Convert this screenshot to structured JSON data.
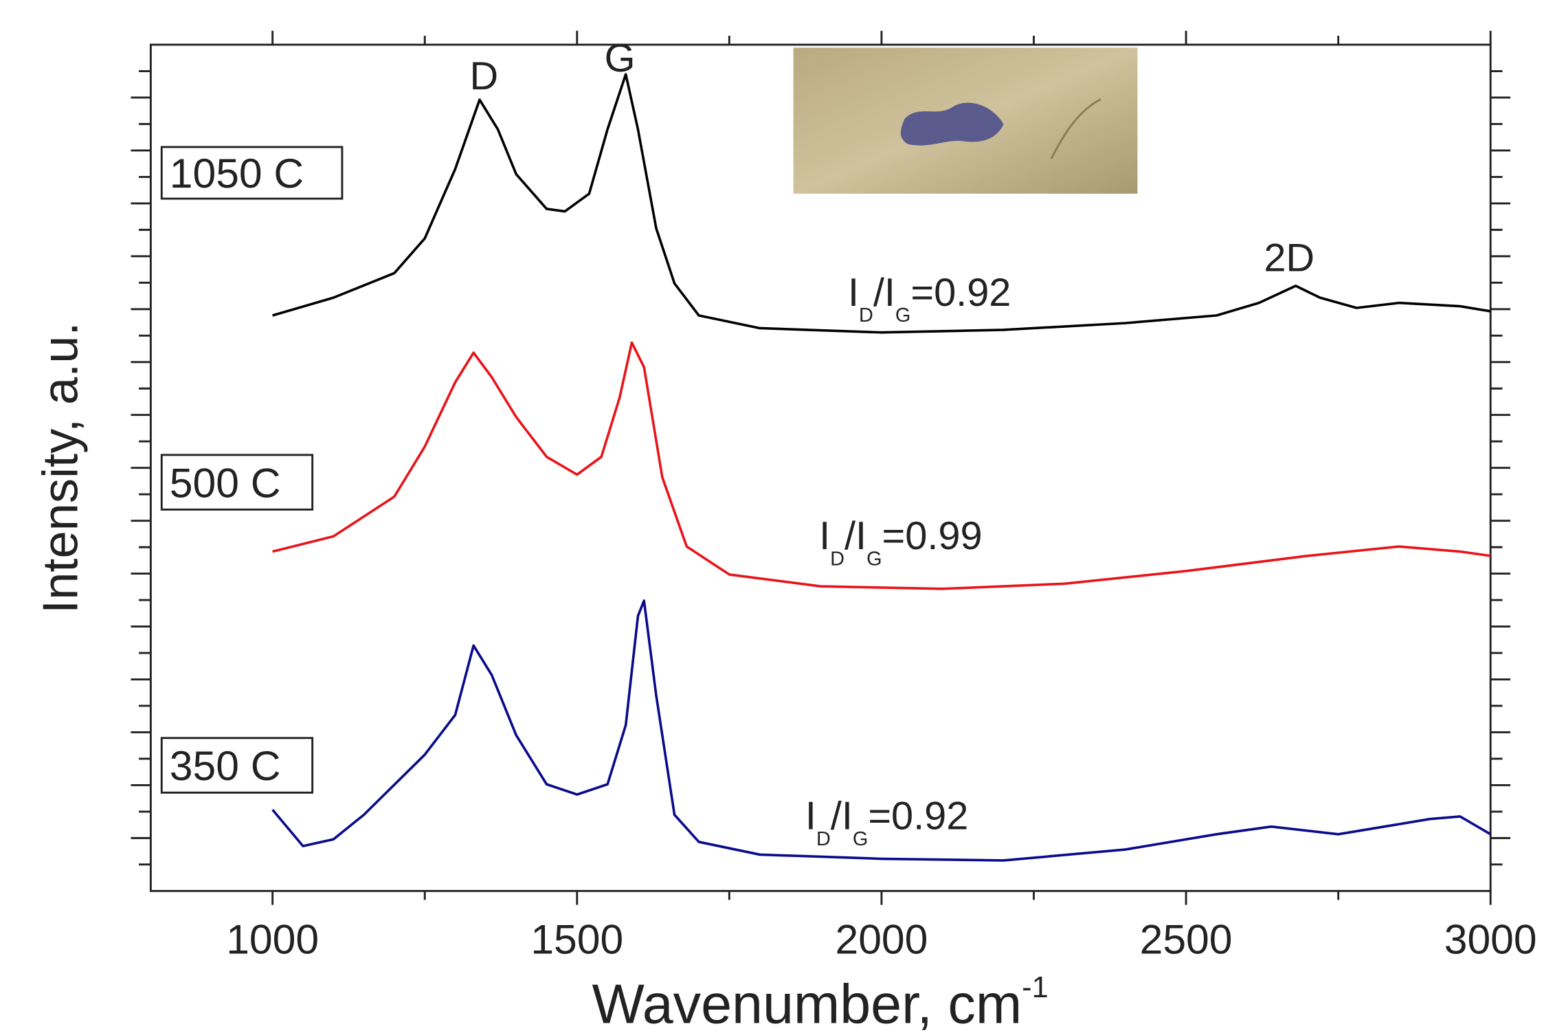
{
  "chart_data": {
    "type": "line",
    "xlabel": [
      "Wavenumber, cm",
      "-1"
    ],
    "ylabel": "Intensity, a.u.",
    "xlim": [
      800,
      3000
    ],
    "xticks": [
      1000,
      1500,
      2000,
      2500,
      3000
    ],
    "xminor_ticks": [
      1250,
      1750,
      2250,
      2750
    ],
    "ylim": [
      0,
      100
    ],
    "peak_labels": [
      "D",
      "G",
      "2D"
    ],
    "ratio_labels": [
      [
        "I",
        "D",
        "/I",
        "G",
        "=0.92"
      ],
      [
        "I",
        "D",
        "/I",
        "G",
        "=0.99"
      ],
      [
        "I",
        "D",
        "/I",
        "G",
        "=0.92"
      ]
    ],
    "series": [
      {
        "name": "1050 C",
        "color": "#000000",
        "x": [
          1000,
          1100,
          1200,
          1250,
          1300,
          1340,
          1370,
          1400,
          1450,
          1480,
          1520,
          1550,
          1580,
          1600,
          1630,
          1660,
          1700,
          1800,
          2000,
          2200,
          2400,
          2550,
          2620,
          2680,
          2720,
          2780,
          2850,
          2950,
          3000
        ],
        "values": [
          68.0,
          70.1,
          73.0,
          77.1,
          85.3,
          93.5,
          90.0,
          84.7,
          80.6,
          80.3,
          82.4,
          90.0,
          96.5,
          90.0,
          78.3,
          71.8,
          68.0,
          66.5,
          66.0,
          66.3,
          67.1,
          68.0,
          69.5,
          71.5,
          70.1,
          68.9,
          69.5,
          69.1,
          68.5
        ]
      },
      {
        "name": "500 C",
        "color": "#e8141a",
        "x": [
          1000,
          1100,
          1200,
          1250,
          1300,
          1330,
          1360,
          1400,
          1450,
          1500,
          1540,
          1570,
          1590,
          1610,
          1640,
          1680,
          1750,
          1900,
          2100,
          2300,
          2500,
          2700,
          2850,
          2950,
          3000
        ],
        "values": [
          40.1,
          41.9,
          46.6,
          52.5,
          60.1,
          63.6,
          60.7,
          56.0,
          51.3,
          49.2,
          51.3,
          58.3,
          64.8,
          61.9,
          48.9,
          40.7,
          37.4,
          36.0,
          35.7,
          36.3,
          37.8,
          39.6,
          40.7,
          40.1,
          39.6
        ]
      },
      {
        "name": "350 C",
        "color": "#0a0a8c",
        "x": [
          1000,
          1050,
          1100,
          1150,
          1250,
          1300,
          1330,
          1360,
          1400,
          1450,
          1500,
          1550,
          1580,
          1600,
          1610,
          1630,
          1660,
          1700,
          1800,
          2000,
          2200,
          2400,
          2550,
          2640,
          2750,
          2900,
          2950,
          3000
        ],
        "values": [
          9.6,
          5.3,
          6.1,
          9.0,
          16.1,
          20.8,
          29.0,
          25.5,
          18.4,
          12.6,
          11.4,
          12.6,
          19.6,
          32.5,
          34.3,
          23.1,
          9.0,
          5.8,
          4.3,
          3.8,
          3.6,
          4.9,
          6.7,
          7.6,
          6.7,
          8.5,
          8.8,
          6.7
        ]
      }
    ]
  }
}
